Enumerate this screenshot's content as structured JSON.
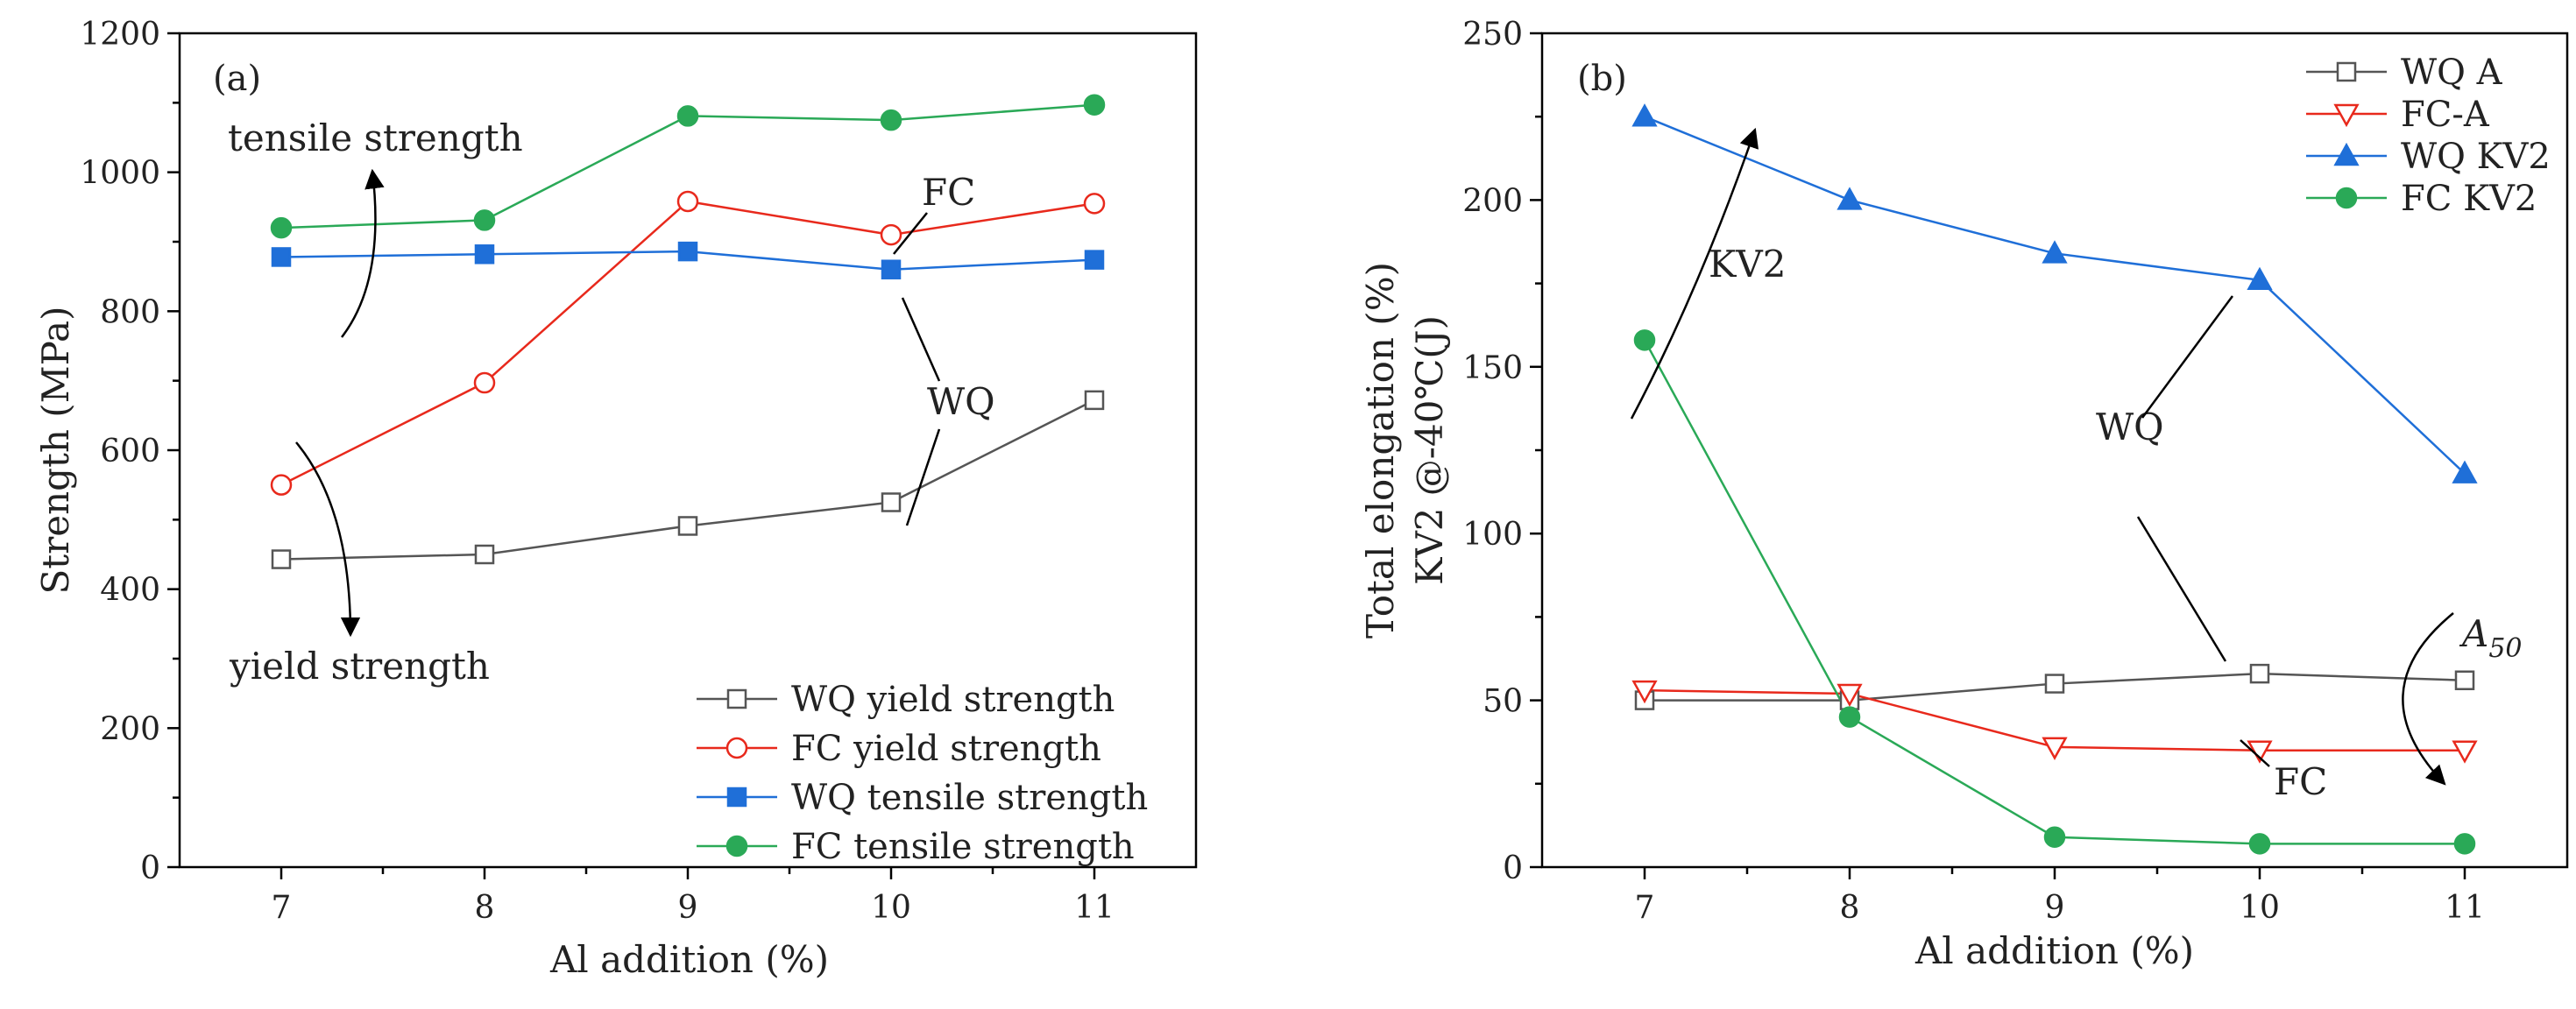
{
  "chart_data": [
    {
      "id": "a",
      "type": "line",
      "panel_label": "(a)",
      "title": "",
      "xlabel": "Al addition (%)",
      "ylabel": "Strength (MPa)",
      "x": [
        7,
        8,
        9,
        10,
        11
      ],
      "xticks": [
        7,
        8,
        9,
        10,
        11
      ],
      "xlim": [
        6.5,
        11.5
      ],
      "ylim": [
        0,
        1200
      ],
      "yticks": [
        0,
        200,
        400,
        600,
        800,
        1000,
        1200
      ],
      "grid": false,
      "legend_position": "bottom-right",
      "series": [
        {
          "name": "WQ yield strength",
          "values": [
            443,
            450,
            491,
            525,
            672
          ],
          "color": "#555555",
          "marker": "square-open"
        },
        {
          "name": "FC yield strength",
          "values": [
            550,
            697,
            958,
            910,
            955
          ],
          "color": "#e8291c",
          "marker": "circle-open"
        },
        {
          "name": "WQ tensile strength",
          "values": [
            878,
            882,
            886,
            860,
            874
          ],
          "color": "#1f6fd8",
          "marker": "square-filled"
        },
        {
          "name": "FC tensile strength",
          "values": [
            920,
            931,
            1081,
            1075,
            1097
          ],
          "color": "#2aa957",
          "marker": "circle-filled"
        }
      ],
      "annotations": {
        "tensile": "tensile strength",
        "yield": "yield strength",
        "fc": "FC",
        "wq": "WQ"
      }
    },
    {
      "id": "b",
      "type": "line",
      "panel_label": "(b)",
      "title": "",
      "xlabel": "Al addition (%)",
      "ylabel": "Total elongation (%)",
      "ylabel2": "KV2 @-40℃(J)",
      "x": [
        7,
        8,
        9,
        10,
        11
      ],
      "xticks": [
        7,
        8,
        9,
        10,
        11
      ],
      "xlim": [
        6.5,
        11.5
      ],
      "ylim": [
        0,
        250
      ],
      "yticks": [
        0,
        50,
        100,
        150,
        200,
        250
      ],
      "grid": false,
      "legend_position": "top-right",
      "series": [
        {
          "name": "WQ A",
          "values": [
            50,
            50,
            55,
            58,
            56
          ],
          "color": "#555555",
          "marker": "square-open"
        },
        {
          "name": "FC-A",
          "values": [
            53,
            52,
            36,
            35,
            35
          ],
          "color": "#e8291c",
          "marker": "triangle-down-open"
        },
        {
          "name": "WQ KV2",
          "values": [
            225,
            200,
            184,
            176,
            118
          ],
          "color": "#1f6fd8",
          "marker": "triangle-up-filled"
        },
        {
          "name": "FC KV2",
          "values": [
            158,
            45,
            9,
            7,
            7
          ],
          "color": "#2aa957",
          "marker": "circle-filled"
        }
      ],
      "annotations": {
        "kv2": "KV2",
        "wq": "WQ",
        "fc": "FC",
        "a50_main": "A",
        "a50_sub": "50"
      }
    }
  ]
}
